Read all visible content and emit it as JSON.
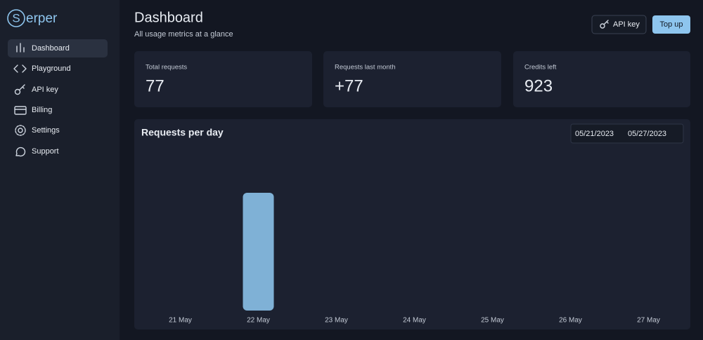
{
  "sidebar": {
    "logo_mark": "S",
    "logo_text": "erper",
    "nav": [
      "Dashboard",
      "Playground",
      "API key",
      "Billing",
      "Settings",
      "Support"
    ]
  },
  "header": {
    "title": "Dashboard",
    "subtitle": "All usage metrics at a glance",
    "buttons": [
      "API key",
      "Top up"
    ]
  },
  "stats": [
    {
      "label": "Total requests",
      "value": "77"
    },
    {
      "label": "Requests last month",
      "value": "+77"
    },
    {
      "label": "Credits left",
      "value": "923"
    }
  ],
  "chart_data": {
    "type": "bar",
    "title": "Requests per day",
    "date_range": [
      "05/21/2023",
      "05/27/2023"
    ],
    "categories": [
      "21 May",
      "22 May",
      "23 May",
      "24 May",
      "25 May",
      "26 May",
      "27 May"
    ],
    "values": [
      0,
      77,
      0,
      0,
      0,
      0,
      0
    ],
    "color": "#7fb1d6"
  }
}
